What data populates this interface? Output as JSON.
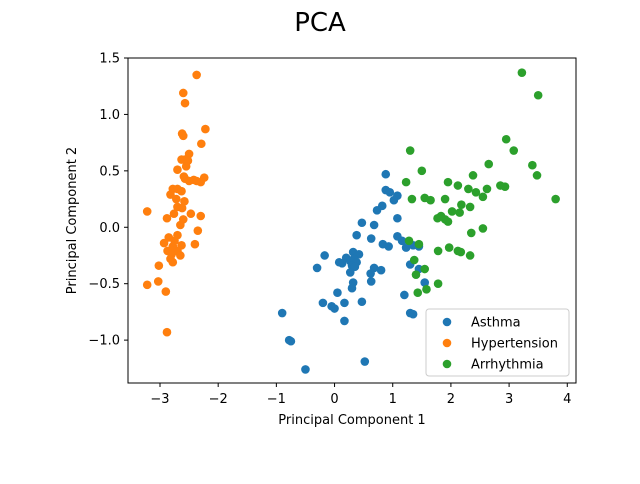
{
  "chart_data": {
    "type": "scatter",
    "title": "PCA",
    "xlabel": "Principal Component 1",
    "ylabel": "Principal Component 2",
    "xlim": [
      -3.55,
      4.15
    ],
    "ylim": [
      -1.38,
      1.5
    ],
    "xticks": [
      -3,
      -2,
      -1,
      0,
      1,
      2,
      3,
      4
    ],
    "yticks": [
      -1.0,
      -0.5,
      0.0,
      0.5,
      1.0,
      1.5
    ],
    "xtick_labels": [
      "−3",
      "−2",
      "−1",
      "0",
      "1",
      "2",
      "3",
      "4"
    ],
    "ytick_labels": [
      "−1.0",
      "−0.5",
      "0.0",
      "0.5",
      "1.0",
      "1.5"
    ],
    "grid": false,
    "legend_position": "bottom-right",
    "series": [
      {
        "name": "Asthma",
        "color": "#1f77b4",
        "points": [
          [
            0.88,
            0.47
          ],
          [
            0.88,
            0.33
          ],
          [
            0.95,
            0.31
          ],
          [
            1.08,
            0.28
          ],
          [
            1.02,
            0.24
          ],
          [
            0.82,
            0.19
          ],
          [
            0.73,
            0.15
          ],
          [
            1.08,
            0.08
          ],
          [
            0.68,
            0.02
          ],
          [
            0.47,
            0.04
          ],
          [
            0.38,
            -0.07
          ],
          [
            0.63,
            -0.1
          ],
          [
            1.08,
            -0.08
          ],
          [
            1.16,
            -0.12
          ],
          [
            0.83,
            -0.15
          ],
          [
            0.93,
            -0.17
          ],
          [
            1.23,
            -0.18
          ],
          [
            1.35,
            -0.16
          ],
          [
            1.45,
            -0.17
          ],
          [
            0.32,
            -0.22
          ],
          [
            0.42,
            -0.24
          ],
          [
            -0.17,
            -0.25
          ],
          [
            0.2,
            -0.27
          ],
          [
            0.27,
            -0.3
          ],
          [
            0.33,
            -0.28
          ],
          [
            0.38,
            -0.31
          ],
          [
            0.13,
            -0.32
          ],
          [
            0.08,
            -0.31
          ],
          [
            0.3,
            -0.34
          ],
          [
            0.35,
            -0.35
          ],
          [
            0.68,
            -0.36
          ],
          [
            0.8,
            -0.38
          ],
          [
            1.3,
            -0.33
          ],
          [
            -0.3,
            -0.36
          ],
          [
            0.27,
            -0.4
          ],
          [
            0.62,
            -0.41
          ],
          [
            1.45,
            -0.37
          ],
          [
            0.63,
            -0.48
          ],
          [
            0.32,
            -0.49
          ],
          [
            1.55,
            -0.49
          ],
          [
            0.05,
            -0.58
          ],
          [
            0.3,
            -0.54
          ],
          [
            1.2,
            -0.6
          ],
          [
            -0.2,
            -0.67
          ],
          [
            -0.05,
            -0.7
          ],
          [
            0.0,
            -0.72
          ],
          [
            0.17,
            -0.67
          ],
          [
            0.47,
            -0.66
          ],
          [
            1.3,
            -0.76
          ],
          [
            1.35,
            -0.77
          ],
          [
            -0.9,
            -0.76
          ],
          [
            0.17,
            -0.83
          ],
          [
            -0.78,
            -1.0
          ],
          [
            -0.75,
            -1.01
          ],
          [
            0.52,
            -1.19
          ],
          [
            -0.5,
            -1.26
          ]
        ]
      },
      {
        "name": "Hypertension",
        "color": "#ff7f0e",
        "points": [
          [
            -2.37,
            1.35
          ],
          [
            -2.6,
            1.19
          ],
          [
            -2.57,
            1.1
          ],
          [
            -2.22,
            0.87
          ],
          [
            -2.62,
            0.83
          ],
          [
            -2.6,
            0.81
          ],
          [
            -2.29,
            0.74
          ],
          [
            -2.5,
            0.65
          ],
          [
            -2.57,
            0.6
          ],
          [
            -2.52,
            0.59
          ],
          [
            -2.63,
            0.6
          ],
          [
            -2.55,
            0.54
          ],
          [
            -2.7,
            0.51
          ],
          [
            -2.59,
            0.45
          ],
          [
            -2.57,
            0.43
          ],
          [
            -2.24,
            0.44
          ],
          [
            -2.42,
            0.42
          ],
          [
            -2.3,
            0.4
          ],
          [
            -2.37,
            0.41
          ],
          [
            -2.5,
            0.41
          ],
          [
            -2.78,
            0.34
          ],
          [
            -2.7,
            0.34
          ],
          [
            -2.63,
            0.32
          ],
          [
            -2.82,
            0.29
          ],
          [
            -2.72,
            0.25
          ],
          [
            -2.58,
            0.23
          ],
          [
            -2.7,
            0.18
          ],
          [
            -2.62,
            0.17
          ],
          [
            -2.47,
            0.12
          ],
          [
            -2.3,
            0.1
          ],
          [
            -2.76,
            0.12
          ],
          [
            -2.88,
            0.08
          ],
          [
            -2.6,
            0.07
          ],
          [
            -2.65,
            0.02
          ],
          [
            -3.22,
            0.14
          ],
          [
            -2.35,
            -0.03
          ],
          [
            -2.7,
            -0.07
          ],
          [
            -2.85,
            -0.09
          ],
          [
            -2.75,
            -0.12
          ],
          [
            -2.93,
            -0.14
          ],
          [
            -2.78,
            -0.17
          ],
          [
            -2.63,
            -0.16
          ],
          [
            -2.4,
            -0.15
          ],
          [
            -2.87,
            -0.21
          ],
          [
            -2.7,
            -0.21
          ],
          [
            -2.8,
            -0.24
          ],
          [
            -2.82,
            -0.28
          ],
          [
            -2.65,
            -0.25
          ],
          [
            -2.78,
            -0.31
          ],
          [
            -3.02,
            -0.34
          ],
          [
            -3.03,
            -0.48
          ],
          [
            -3.22,
            -0.51
          ],
          [
            -2.9,
            -0.57
          ],
          [
            -2.88,
            -0.93
          ]
        ]
      },
      {
        "name": "Arrhythmia",
        "color": "#2ca02c",
        "points": [
          [
            3.22,
            1.37
          ],
          [
            3.5,
            1.17
          ],
          [
            2.95,
            0.78
          ],
          [
            3.08,
            0.68
          ],
          [
            1.3,
            0.68
          ],
          [
            2.65,
            0.56
          ],
          [
            3.4,
            0.55
          ],
          [
            1.5,
            0.5
          ],
          [
            3.48,
            0.46
          ],
          [
            2.38,
            0.46
          ],
          [
            1.23,
            0.4
          ],
          [
            1.95,
            0.4
          ],
          [
            2.12,
            0.37
          ],
          [
            2.3,
            0.34
          ],
          [
            2.62,
            0.34
          ],
          [
            2.85,
            0.37
          ],
          [
            2.93,
            0.36
          ],
          [
            2.43,
            0.31
          ],
          [
            2.55,
            0.27
          ],
          [
            1.33,
            0.25
          ],
          [
            1.55,
            0.26
          ],
          [
            1.65,
            0.24
          ],
          [
            1.9,
            0.25
          ],
          [
            3.8,
            0.25
          ],
          [
            2.18,
            0.2
          ],
          [
            2.33,
            0.18
          ],
          [
            2.02,
            0.14
          ],
          [
            2.15,
            0.13
          ],
          [
            1.77,
            0.08
          ],
          [
            1.83,
            0.1
          ],
          [
            1.9,
            0.07
          ],
          [
            1.95,
            0.05
          ],
          [
            2.55,
            -0.01
          ],
          [
            2.35,
            -0.05
          ],
          [
            1.28,
            -0.12
          ],
          [
            1.45,
            -0.15
          ],
          [
            1.97,
            -0.18
          ],
          [
            1.78,
            -0.21
          ],
          [
            2.12,
            -0.21
          ],
          [
            2.17,
            -0.22
          ],
          [
            2.33,
            -0.25
          ],
          [
            1.37,
            -0.29
          ],
          [
            1.55,
            -0.37
          ],
          [
            1.4,
            -0.42
          ],
          [
            1.78,
            -0.5
          ],
          [
            1.58,
            -0.55
          ],
          [
            1.43,
            -0.58
          ]
        ]
      }
    ]
  }
}
